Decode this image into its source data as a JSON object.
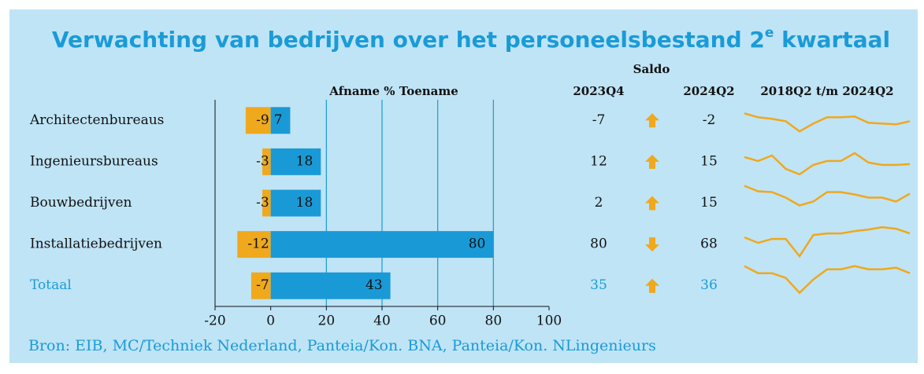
{
  "chart_data": {
    "type": "diverging-bar",
    "title": {
      "text": "Verwachting van bedrijven over het personeelsbestand 2",
      "superscript": "e",
      "suffix": " kwartaal"
    },
    "axis_header": "Afname % Toename",
    "categories": [
      "Architectenbureaus",
      "Ingenieursbureaus",
      "Bouwbedrijven",
      "Installatiebedrijven",
      "Totaal"
    ],
    "series": [
      {
        "name": "Afname",
        "color": "#f0a81c",
        "values": [
          -9,
          -3,
          -3,
          -12,
          -7
        ]
      },
      {
        "name": "Toename",
        "color": "#199ad6",
        "values": [
          7,
          18,
          18,
          80,
          43
        ]
      }
    ],
    "xlim": [
      -20,
      100
    ],
    "xticks": [
      -20,
      0,
      20,
      40,
      60,
      80,
      100
    ],
    "saldo": {
      "title": "Saldo",
      "columns": [
        {
          "name": "2023Q4",
          "values": [
            -7,
            12,
            2,
            80,
            35
          ]
        },
        {
          "name": "2024Q2",
          "values": [
            -2,
            15,
            15,
            68,
            36
          ]
        }
      ],
      "trend": [
        "up",
        "up",
        "up",
        "down",
        "up"
      ],
      "trend_color": "#f0a81c"
    },
    "sparklines": {
      "title": "2018Q2 t/m 2024Q2",
      "color": "#f0a81c",
      "ylim": [
        -60,
        60
      ],
      "values": [
        [
          18,
          8,
          4,
          -2,
          -28,
          -8,
          8,
          8,
          10,
          -6,
          -8,
          -10,
          -2
        ],
        [
          12,
          2,
          16,
          -18,
          -32,
          -8,
          2,
          2,
          22,
          -2,
          -8,
          -8,
          -6
        ],
        [
          44,
          30,
          28,
          14,
          -6,
          4,
          28,
          28,
          22,
          14,
          14,
          4,
          24
        ],
        [
          18,
          4,
          14,
          14,
          -30,
          24,
          28,
          28,
          34,
          38,
          44,
          40,
          28
        ],
        [
          50,
          32,
          32,
          20,
          -18,
          16,
          42,
          42,
          50,
          42,
          42,
          46,
          32
        ]
      ]
    },
    "source": "Bron: EIB, MC/Techniek Nederland, Panteia/Kon. BNA, Panteia/Kon. NLingenieurs"
  }
}
